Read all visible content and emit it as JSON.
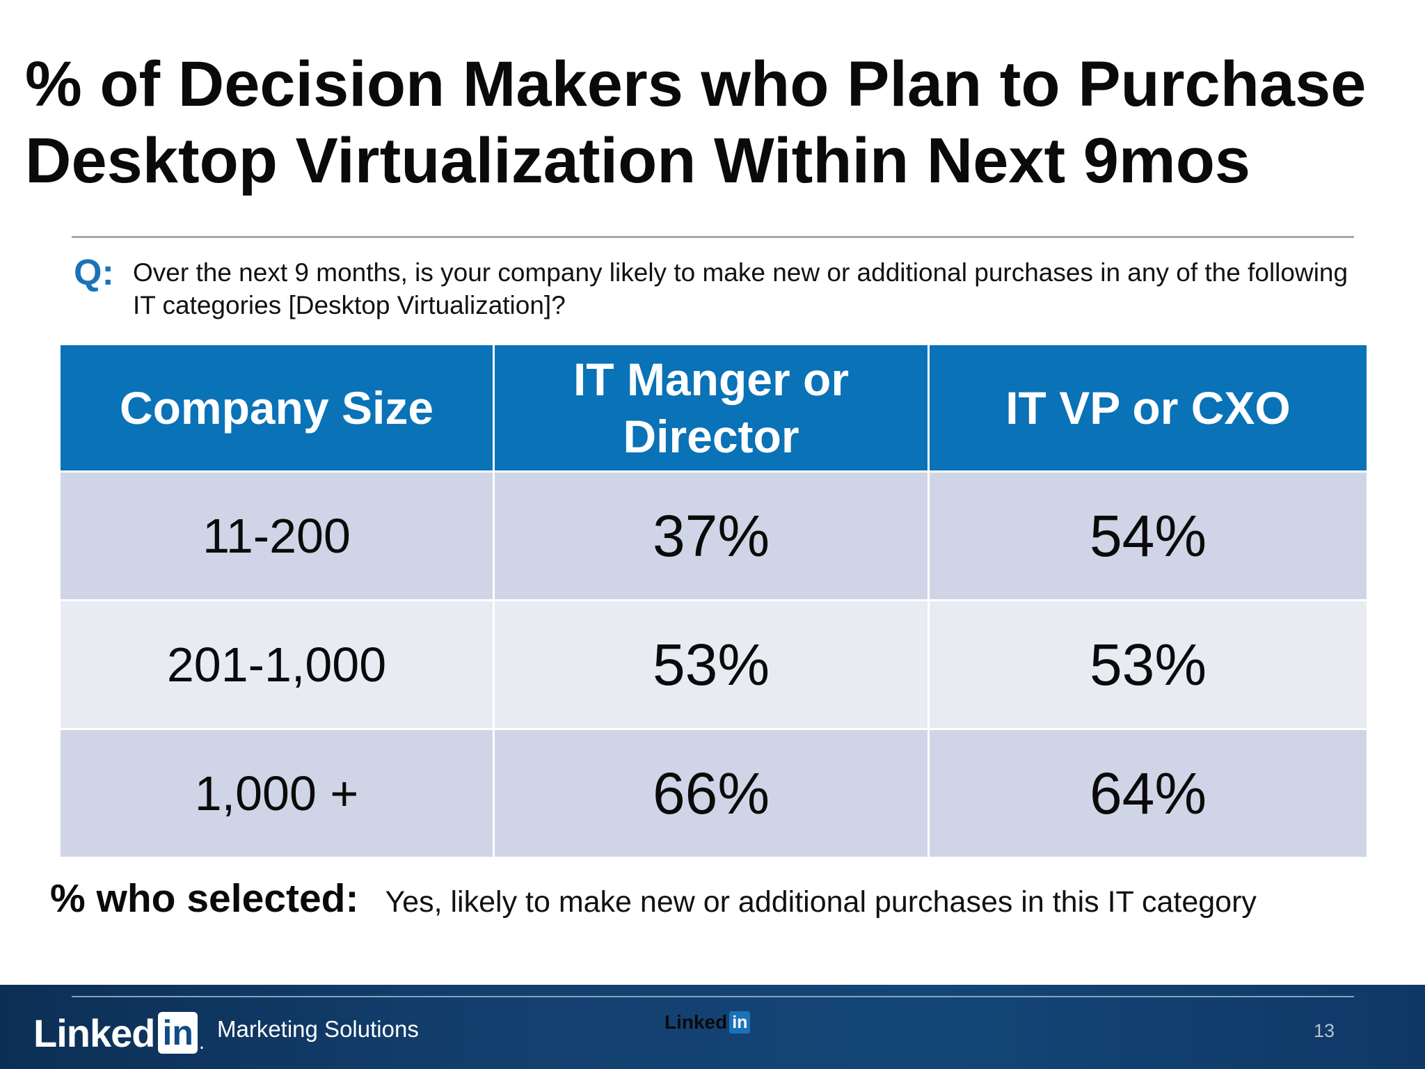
{
  "slide": {
    "title": "% of Decision Makers who Plan to Purchase Desktop Virtualization Within Next 9mos",
    "question": {
      "label": "Q:",
      "text": "Over the next 9 months, is your company likely to make new or additional purchases in any of the following IT categories [Desktop Virtualization]?"
    },
    "table": {
      "headers": [
        "Company Size",
        "IT Manger or Director",
        "IT VP or CXO"
      ],
      "rows": [
        {
          "size": "11-200",
          "manager": "37%",
          "vp": "54%"
        },
        {
          "size": "201-1,000",
          "manager": "53%",
          "vp": "53%"
        },
        {
          "size": "1,000 +",
          "manager": "66%",
          "vp": "64%"
        }
      ]
    },
    "selected_note": {
      "label": "% who selected:",
      "text": "Yes, likely to make new or additional purchases in this IT category"
    }
  },
  "footer": {
    "logo_word": "Linked",
    "logo_box": "in",
    "tagline": "Marketing Solutions",
    "center_logo_word": "Linked",
    "center_logo_box": "in",
    "page_number": "13"
  },
  "colors": {
    "header_blue": "#0a72b7",
    "row_dark": "#cfd5e6",
    "row_light": "#e9ebf3",
    "question_accent": "#1a73b8",
    "footer_navy": "#134677"
  }
}
